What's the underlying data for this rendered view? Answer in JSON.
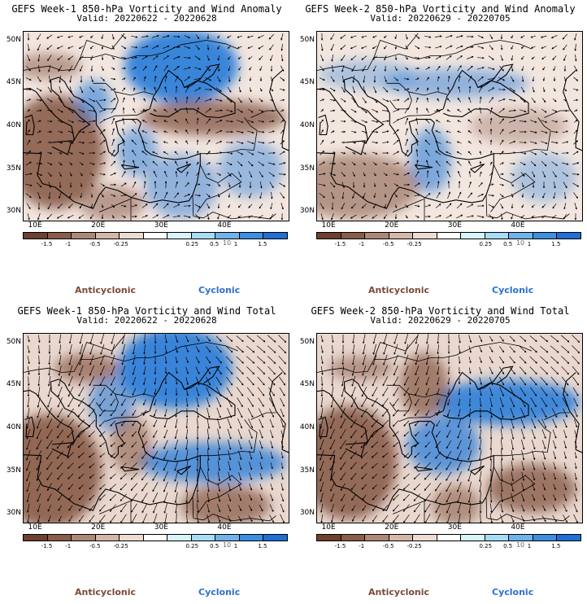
{
  "colors": {
    "anticyclonic_text": "#7a4a36",
    "cyclonic_text": "#2b6fd1",
    "ocean_blue": "#2f7fd9",
    "brown": "#8a5d4a",
    "white": "#ffffff"
  },
  "colorbar": {
    "ticks": [
      "-1.5",
      "-1",
      "-0.5",
      "-0.25",
      "0.25",
      "0.5",
      "1",
      "1.5"
    ],
    "unit_label": "10",
    "colors": [
      "#6e4030",
      "#8a5d4a",
      "#ae8877",
      "#d4b7a8",
      "#eddcd2",
      "#ffffff",
      "#d7f4fb",
      "#a6ddf4",
      "#6fb3ea",
      "#3d8fe0",
      "#1f6fd6"
    ]
  },
  "legend": {
    "anticyclonic": "Anticyclonic",
    "cyclonic": "Cyclonic"
  },
  "axes": {
    "lat_labels": [
      "50N",
      "45N",
      "40N",
      "35N",
      "30N"
    ],
    "lon_labels": [
      "10E",
      "20E",
      "30E",
      "40E"
    ]
  },
  "panels": [
    {
      "title": "GEFS Week-1 850-hPa Vorticity and Wind Anomaly",
      "valid": "Valid: 20220622 - 20220628",
      "style": "anomaly"
    },
    {
      "title": "GEFS Week-2 850-hPa Vorticity and Wind Anomaly",
      "valid": "Valid: 20220629 - 20220705",
      "style": "anomaly2"
    },
    {
      "title": "GEFS Week-1 850-hPa Vorticity and Wind Total",
      "valid": "Valid: 20220622 - 20220628",
      "style": "total"
    },
    {
      "title": "GEFS Week-2 850-hPa Vorticity and Wind Total",
      "valid": "Valid: 20220629 - 20220705",
      "style": "total2"
    }
  ]
}
